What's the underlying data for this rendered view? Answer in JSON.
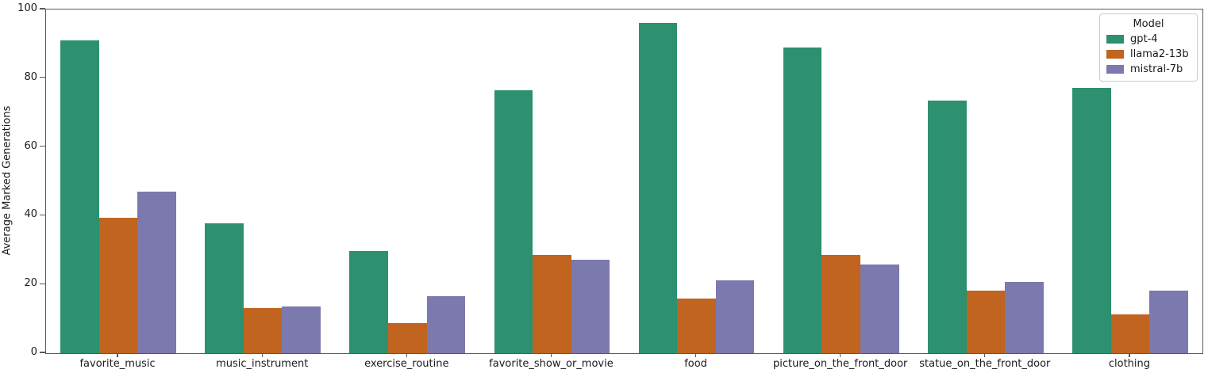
{
  "chart_data": {
    "type": "bar",
    "title": "",
    "xlabel": "",
    "ylabel": "Average Marked Generations",
    "ylim": [
      0,
      100
    ],
    "yticks": [
      0,
      20,
      40,
      60,
      80,
      100
    ],
    "grid": false,
    "legend_position": "upper right",
    "legend_title": "Model",
    "categories": [
      "favorite_music",
      "music_instrument",
      "exercise_routine",
      "favorite_show_or_movie",
      "food",
      "picture_on_the_front_door",
      "statue_on_the_front_door",
      "clothing"
    ],
    "series": [
      {
        "name": "gpt-4",
        "color": "#2d9070",
        "values": [
          91.0,
          37.7,
          29.7,
          76.4,
          96.0,
          89.0,
          73.4,
          77.3
        ]
      },
      {
        "name": "llama2-13b",
        "color": "#c0641f",
        "values": [
          39.5,
          13.1,
          8.7,
          28.6,
          15.8,
          28.6,
          18.1,
          11.3
        ]
      },
      {
        "name": "mistral-7b",
        "color": "#7c79ae",
        "values": [
          46.9,
          13.6,
          16.7,
          27.1,
          21.2,
          25.9,
          20.8,
          18.1
        ]
      }
    ]
  }
}
